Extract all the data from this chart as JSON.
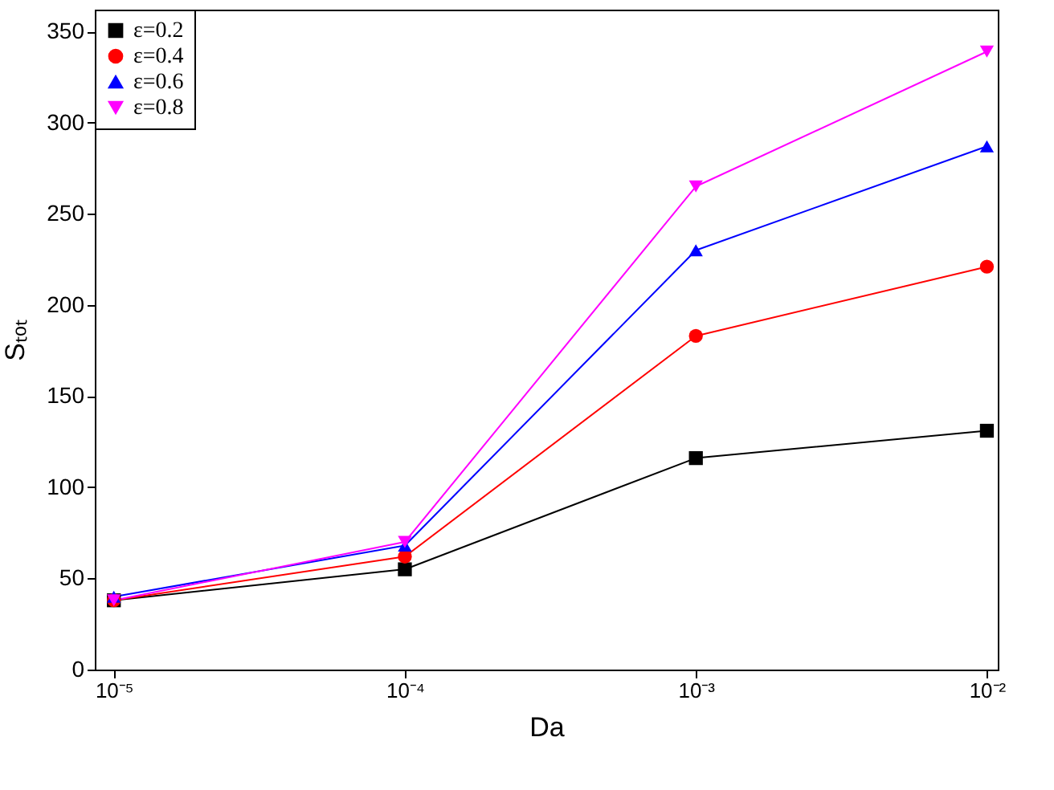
{
  "chart_data": {
    "type": "line",
    "xlabel": "Da",
    "ylabel": "Sₜₒₜ",
    "log": "x",
    "x": [
      1e-05,
      0.0001,
      0.001,
      0.01
    ],
    "xlim": [
      8.6e-06,
      0.0109
    ],
    "xticks": [
      {
        "value": 1e-05,
        "label": "10⁻⁵"
      },
      {
        "value": 0.0001,
        "label": "10⁻⁴"
      },
      {
        "value": 0.001,
        "label": "10⁻³"
      },
      {
        "value": 0.01,
        "label": "10⁻²"
      }
    ],
    "ylim": [
      0,
      362
    ],
    "yticks": [
      0,
      50,
      100,
      150,
      200,
      250,
      300,
      350
    ],
    "grid": false,
    "legend": "top left",
    "series": [
      {
        "name": "ε=0.2",
        "color": "#000000",
        "marker": "square",
        "values": [
          38,
          55,
          116,
          131
        ]
      },
      {
        "name": "ε=0.4",
        "color": "#ff0000",
        "marker": "circle",
        "values": [
          38,
          62,
          183,
          221
        ]
      },
      {
        "name": "ε=0.6",
        "color": "#0000ff",
        "marker": "triangle",
        "values": [
          40,
          68,
          230,
          287
        ]
      },
      {
        "name": "ε=0.8",
        "color": "#ff00ff",
        "marker": "triangle-down",
        "values": [
          38,
          70,
          265,
          339
        ]
      }
    ]
  }
}
